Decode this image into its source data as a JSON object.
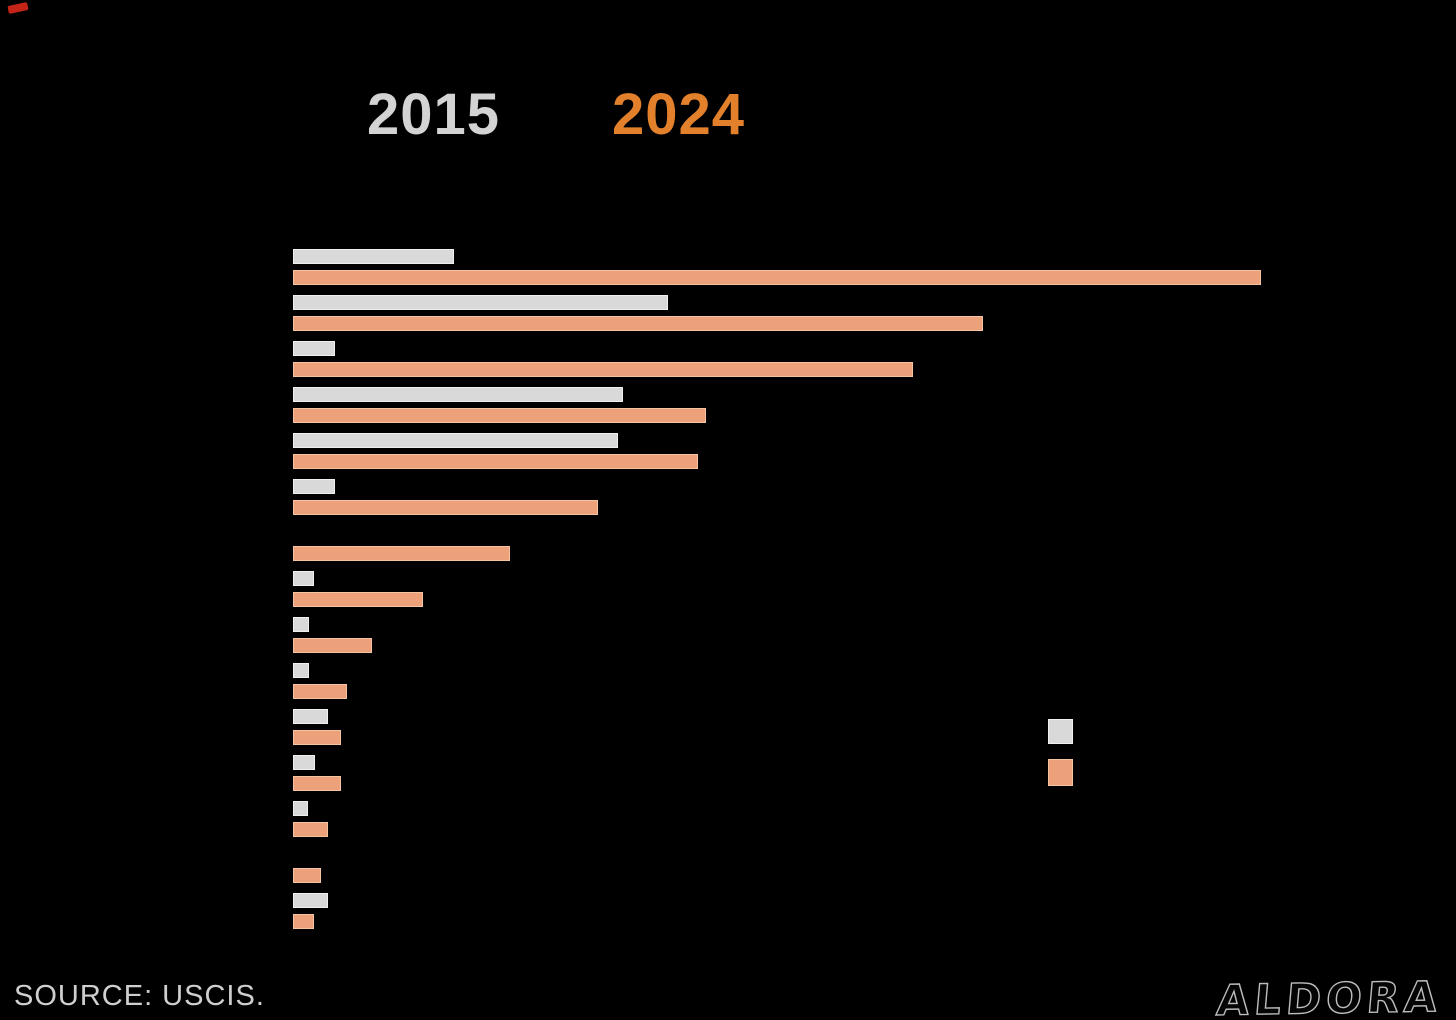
{
  "page": {
    "background_color": "#000000"
  },
  "header": {
    "year_2015": {
      "label": "2015",
      "color": "#d3d3d3"
    },
    "year_2024": {
      "label": "2024",
      "color": "#e2802b"
    }
  },
  "chart_data": {
    "type": "bar",
    "orientation": "horizontal",
    "title": "",
    "xlabel": "",
    "ylabel": "",
    "axes_visible": false,
    "grid": false,
    "legend_position": "right-middle",
    "note": "No category labels, axis ticks, or numeric data labels are visible in the image; values below are relative bar lengths measured in screen pixels (bar baseline at x=293).",
    "units": "px",
    "categories": [
      "",
      "",
      "",
      "",
      "",
      "",
      "",
      "",
      "",
      "",
      "",
      "",
      "",
      "",
      ""
    ],
    "series": [
      {
        "name": "2015",
        "color": "#d9d9d9",
        "values": [
          161,
          375,
          42,
          330,
          325,
          42,
          0,
          21,
          16,
          16,
          35,
          22,
          15,
          0,
          35
        ]
      },
      {
        "name": "2024",
        "color": "#eda17b",
        "values": [
          968,
          690,
          620,
          413,
          405,
          305,
          217,
          130,
          79,
          54,
          48,
          48,
          35,
          28,
          21
        ]
      }
    ]
  },
  "legend": {
    "swatches": [
      {
        "name": "2015",
        "color": "#d9d9d9"
      },
      {
        "name": "2024",
        "color": "#eda17b"
      }
    ]
  },
  "footer": {
    "source": "SOURCE: USCIS.",
    "signature": "ALDORA"
  }
}
